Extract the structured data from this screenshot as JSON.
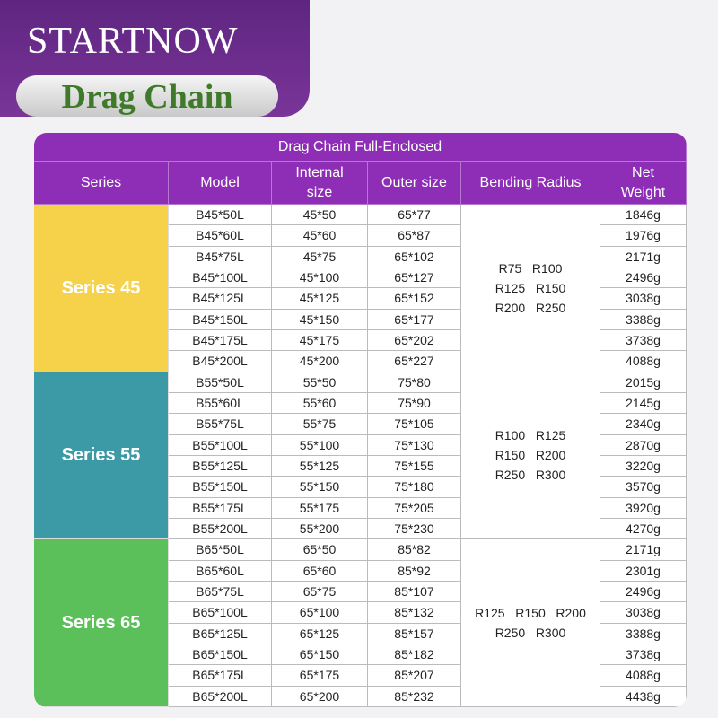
{
  "header": {
    "brand": "STARTNOW",
    "title": "Drag Chain"
  },
  "table": {
    "title": "Drag Chain Full-Enclosed",
    "columns": [
      "Series",
      "Model",
      "Internal size",
      "Outer size",
      "Bending Radius",
      "Net Weight"
    ],
    "groups": [
      {
        "series": "Series 45",
        "color": "#f5d24a",
        "radius": [
          "R75   R100",
          "R125   R150",
          "R200   R250"
        ],
        "rows": [
          [
            "B45*50L",
            "45*50",
            "65*77",
            "1846g"
          ],
          [
            "B45*60L",
            "45*60",
            "65*87",
            "1976g"
          ],
          [
            "B45*75L",
            "45*75",
            "65*102",
            "2171g"
          ],
          [
            "B45*100L",
            "45*100",
            "65*127",
            "2496g"
          ],
          [
            "B45*125L",
            "45*125",
            "65*152",
            "3038g"
          ],
          [
            "B45*150L",
            "45*150",
            "65*177",
            "3388g"
          ],
          [
            "B45*175L",
            "45*175",
            "65*202",
            "3738g"
          ],
          [
            "B45*200L",
            "45*200",
            "65*227",
            "4088g"
          ]
        ]
      },
      {
        "series": "Series 55",
        "color": "#3c9aa6",
        "radius": [
          "R100   R125",
          "R150   R200",
          "R250   R300"
        ],
        "rows": [
          [
            "B55*50L",
            "55*50",
            "75*80",
            "2015g"
          ],
          [
            "B55*60L",
            "55*60",
            "75*90",
            "2145g"
          ],
          [
            "B55*75L",
            "55*75",
            "75*105",
            "2340g"
          ],
          [
            "B55*100L",
            "55*100",
            "75*130",
            "2870g"
          ],
          [
            "B55*125L",
            "55*125",
            "75*155",
            "3220g"
          ],
          [
            "B55*150L",
            "55*150",
            "75*180",
            "3570g"
          ],
          [
            "B55*175L",
            "55*175",
            "75*205",
            "3920g"
          ],
          [
            "B55*200L",
            "55*200",
            "75*230",
            "4270g"
          ]
        ]
      },
      {
        "series": "Series 65",
        "color": "#5cc05a",
        "radius": [
          "R125   R150   R200",
          "R250   R300"
        ],
        "rows": [
          [
            "B65*50L",
            "65*50",
            "85*82",
            "2171g"
          ],
          [
            "B65*60L",
            "65*60",
            "85*92",
            "2301g"
          ],
          [
            "B65*75L",
            "65*75",
            "85*107",
            "2496g"
          ],
          [
            "B65*100L",
            "65*100",
            "85*132",
            "3038g"
          ],
          [
            "B65*125L",
            "65*125",
            "85*157",
            "3388g"
          ],
          [
            "B65*150L",
            "65*150",
            "85*182",
            "3738g"
          ],
          [
            "B65*175L",
            "65*175",
            "85*207",
            "4088g"
          ],
          [
            "B65*200L",
            "65*200",
            "85*232",
            "4438g"
          ]
        ]
      }
    ]
  }
}
